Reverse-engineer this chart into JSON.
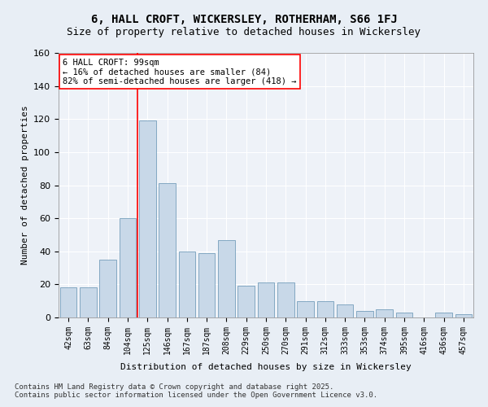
{
  "title1": "6, HALL CROFT, WICKERSLEY, ROTHERHAM, S66 1FJ",
  "title2": "Size of property relative to detached houses in Wickersley",
  "xlabel": "Distribution of detached houses by size in Wickersley",
  "ylabel": "Number of detached properties",
  "bar_color": "#c8d8e8",
  "bar_edge_color": "#6090b0",
  "categories": [
    "42sqm",
    "63sqm",
    "84sqm",
    "104sqm",
    "125sqm",
    "146sqm",
    "167sqm",
    "187sqm",
    "208sqm",
    "229sqm",
    "250sqm",
    "270sqm",
    "291sqm",
    "312sqm",
    "333sqm",
    "353sqm",
    "374sqm",
    "395sqm",
    "416sqm",
    "436sqm",
    "457sqm"
  ],
  "values": [
    18,
    18,
    35,
    60,
    119,
    81,
    40,
    39,
    47,
    19,
    21,
    21,
    10,
    10,
    8,
    4,
    5,
    3,
    0,
    3,
    2
  ],
  "ylim": [
    0,
    160
  ],
  "yticks": [
    0,
    20,
    40,
    60,
    80,
    100,
    120,
    140,
    160
  ],
  "vline_x": 3.5,
  "annotation_title": "6 HALL CROFT: 99sqm",
  "annotation_line1": "← 16% of detached houses are smaller (84)",
  "annotation_line2": "82% of semi-detached houses are larger (418) →",
  "footer": "Contains HM Land Registry data © Crown copyright and database right 2025.\nContains public sector information licensed under the Open Government Licence v3.0.",
  "background_color": "#e8eef5",
  "plot_bg_color": "#eef2f8",
  "grid_color": "#ffffff"
}
